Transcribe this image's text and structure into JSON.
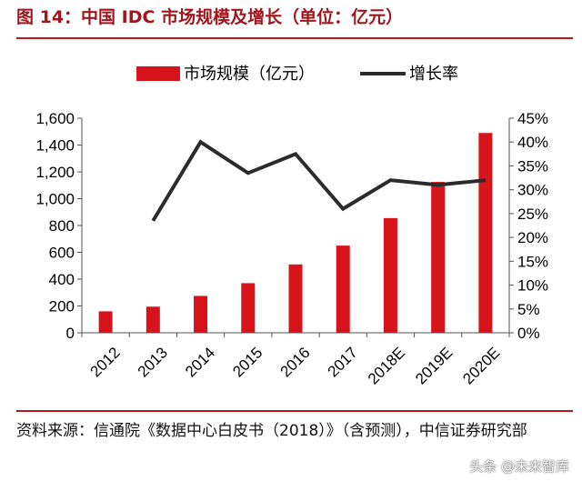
{
  "figure": {
    "title": "图 14：中国 IDC 市场规模及增长（单位：亿元）",
    "source": "资料来源：信通院《数据中心白皮书（2018）》（含预测），中信证券研究部",
    "watermark": "头条 @未来智库"
  },
  "chart_data": {
    "type": "bar",
    "categories": [
      "2012",
      "2013",
      "2014",
      "2015",
      "2016",
      "2017",
      "2018E",
      "2019E",
      "2020E"
    ],
    "series": [
      {
        "name": "市场规模（亿元）",
        "type": "bar",
        "axis": "left",
        "color": "#d7141b",
        "values": [
          160,
          195,
          275,
          370,
          510,
          650,
          855,
          1125,
          1490
        ]
      },
      {
        "name": "增长率",
        "type": "line",
        "axis": "right",
        "color": "#2b2b2b",
        "values": [
          null,
          0.235,
          0.4,
          0.335,
          0.375,
          0.26,
          0.32,
          0.31,
          0.32
        ]
      }
    ],
    "ylim_left": [
      0,
      1600
    ],
    "yticks_left": [
      "0",
      "200",
      "400",
      "600",
      "800",
      "1,000",
      "1,200",
      "1,400",
      "1,600"
    ],
    "ylim_right": [
      0,
      0.45
    ],
    "yticks_right": [
      "0%",
      "5%",
      "10%",
      "15%",
      "20%",
      "25%",
      "30%",
      "35%",
      "40%",
      "45%"
    ],
    "grid": false,
    "legend_position": "top"
  }
}
